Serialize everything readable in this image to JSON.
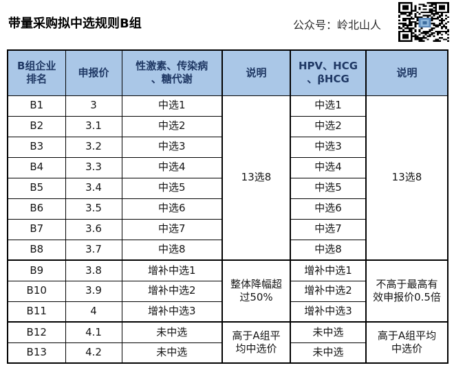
{
  "page": {
    "title": "带量采购拟中选规则B组",
    "account": "公众号：岭北山人",
    "qr_alt": "qr-code"
  },
  "colors": {
    "header_bg": "#aac7e7",
    "header_text": "#1f3864",
    "border": "#000000",
    "qr_logo_blue": "#5b88b8"
  },
  "table": {
    "headers": [
      "B组企业\n排名",
      "申报价",
      "性激素、传染病\n、糖代谢",
      "说明",
      "HPV、HCG\n、βHCG",
      "说明"
    ],
    "rows": [
      {
        "rank": "B1",
        "price": "3",
        "g1": "中选1",
        "g2": "中选1"
      },
      {
        "rank": "B2",
        "price": "3.1",
        "g1": "中选2",
        "g2": "中选2"
      },
      {
        "rank": "B3",
        "price": "3.2",
        "g1": "中选3",
        "g2": "中选3"
      },
      {
        "rank": "B4",
        "price": "3.3",
        "g1": "中选4",
        "g2": "中选4"
      },
      {
        "rank": "B5",
        "price": "3.4",
        "g1": "中选5",
        "g2": "中选5"
      },
      {
        "rank": "B6",
        "price": "3.5",
        "g1": "中选6",
        "g2": "中选6"
      },
      {
        "rank": "B7",
        "price": "3.6",
        "g1": "中选7",
        "g2": "中选7"
      },
      {
        "rank": "B8",
        "price": "3.7",
        "g1": "中选8",
        "g2": "中选8"
      },
      {
        "rank": "B9",
        "price": "3.8",
        "g1": "增补中选1",
        "g2": "增补中选1"
      },
      {
        "rank": "B10",
        "price": "3.9",
        "g1": "增补中选2",
        "g2": "增补中选2"
      },
      {
        "rank": "B11",
        "price": "4",
        "g1": "增补中选3",
        "g2": "增补中选3"
      },
      {
        "rank": "B12",
        "price": "4.1",
        "g1": "未中选",
        "g2": "未中选"
      },
      {
        "rank": "B13",
        "price": "4.2",
        "g1": "未中选",
        "g2": "未中选"
      }
    ],
    "notes": {
      "group1_selected": "13选8",
      "group1_supplement": "整体降幅超\n过50%",
      "group1_unselected": "高于A组平\n均中选价",
      "group2_selected": "13选8",
      "group2_supplement": "不高于最高有\n效申报价0.5倍",
      "group2_unselected": "高于A组平均\n中选价"
    }
  }
}
